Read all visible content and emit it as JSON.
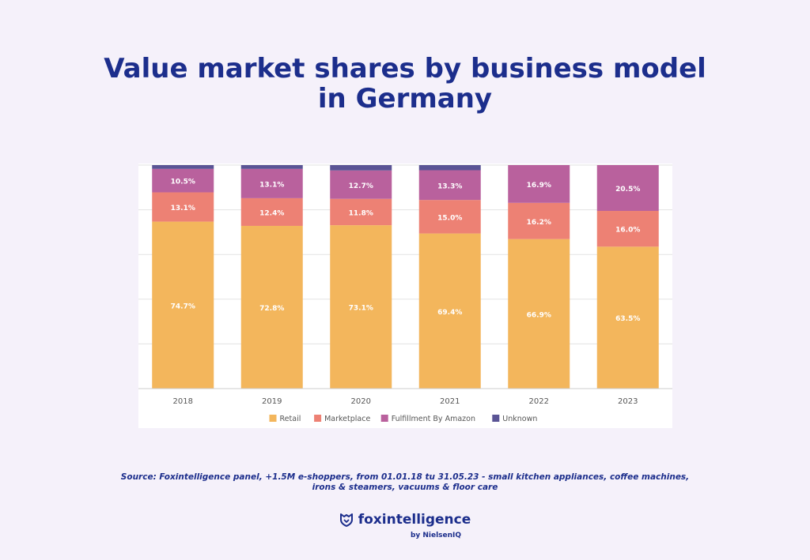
{
  "title_line1": "Value market shares by business model",
  "title_line2": "in Germany",
  "source": "Source: Foxintelligence panel, +1.5M e-shoppers, from 01.01.18 tu 31.05.23 - small kitchen appliances, coffee machines, irons & steamers, vacuums & floor care",
  "brand": {
    "name": "foxintelligence",
    "sub": "by NielsenIQ",
    "icon": "fox-shield-icon"
  },
  "colors": {
    "retail": "#f3b65c",
    "marketplace": "#ed8174",
    "fba": "#b9619d",
    "unknown": "#5a5495",
    "title": "#1c2e8c"
  },
  "chart_data": {
    "type": "bar",
    "stacked": true,
    "categories": [
      "2018",
      "2019",
      "2020",
      "2021",
      "2022",
      "2023"
    ],
    "series": [
      {
        "name": "Retail",
        "values": [
          74.7,
          72.8,
          73.1,
          69.4,
          66.9,
          63.5
        ],
        "labels": [
          "74.7%",
          "72.8%",
          "73.1%",
          "69.4%",
          "66.9%",
          "63.5%"
        ]
      },
      {
        "name": "Marketplace",
        "values": [
          13.1,
          12.4,
          11.8,
          15.0,
          16.2,
          16.0
        ],
        "labels": [
          "13.1%",
          "12.4%",
          "11.8%",
          "15.0%",
          "16.2%",
          "16.0%"
        ]
      },
      {
        "name": "Fulfillment By Amazon",
        "values": [
          10.5,
          13.1,
          12.7,
          13.3,
          16.9,
          20.5
        ],
        "labels": [
          "10.5%",
          "13.1%",
          "12.7%",
          "13.3%",
          "16.9%",
          "20.5%"
        ]
      },
      {
        "name": "Unknown",
        "values": [
          1.7,
          1.7,
          2.4,
          2.3,
          0,
          0
        ]
      }
    ],
    "ylim": [
      0,
      100
    ],
    "grid": true,
    "legend": "bottom"
  }
}
